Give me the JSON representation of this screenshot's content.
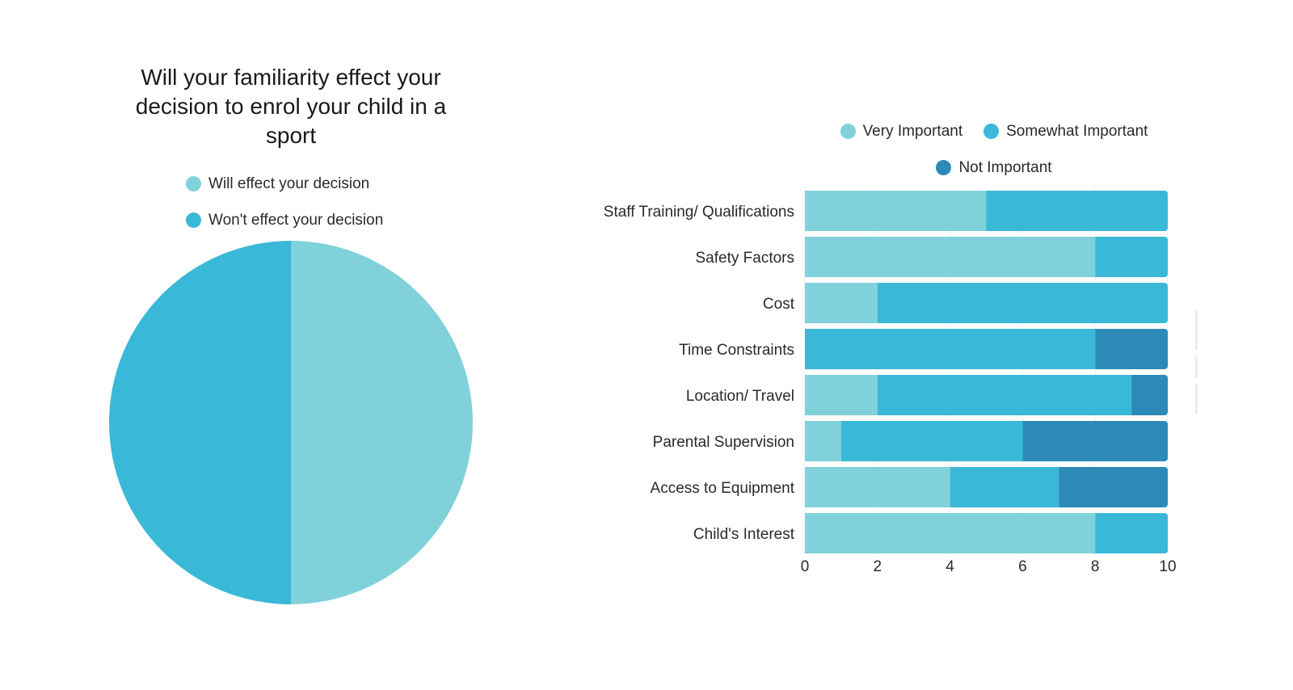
{
  "chart_data": [
    {
      "type": "pie",
      "title": "Will your familiarity effect your decision to enrol your child in a sport",
      "title_lines": [
        "Will your familiarity effect your",
        "decision to enrol your child in a",
        "sport"
      ],
      "legend_position": "top",
      "slices": [
        {
          "label": "Will effect your decision",
          "value": 50,
          "color": "#80D1DA"
        },
        {
          "label": "Won't effect your decision",
          "value": 50,
          "color": "#3AB8D8"
        }
      ]
    },
    {
      "type": "bar",
      "orientation": "horizontal",
      "stacked": true,
      "title": "",
      "xlabel": "",
      "ylabel": "",
      "xlim": [
        0,
        10
      ],
      "xticks": [
        "0",
        "2",
        "4",
        "6",
        "8",
        "10"
      ],
      "grid": true,
      "legend_position": "top",
      "categories": [
        "Staff Training/ Qualifications",
        "Safety Factors",
        "Cost",
        "Time Constraints",
        "Location/ Travel",
        "Parental Supervision",
        "Access to Equipment",
        "Child's Interest"
      ],
      "series": [
        {
          "name": "Very Important",
          "color": "#80D1DA",
          "values": [
            5,
            8,
            2,
            0,
            2,
            1,
            4,
            8
          ]
        },
        {
          "name": "Somewhat Important",
          "color": "#3AB8D8",
          "values": [
            5,
            2,
            8,
            8,
            7,
            5,
            3,
            2
          ]
        },
        {
          "name": "Not Important",
          "color": "#2B8AB8",
          "values": [
            0,
            0,
            0,
            2,
            1,
            4,
            3,
            0
          ]
        }
      ]
    }
  ]
}
